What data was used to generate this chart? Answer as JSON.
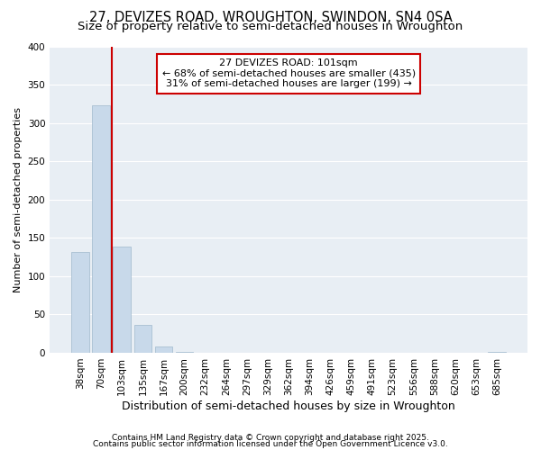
{
  "title1": "27, DEVIZES ROAD, WROUGHTON, SWINDON, SN4 0SA",
  "title2": "Size of property relative to semi-detached houses in Wroughton",
  "xlabel": "Distribution of semi-detached houses by size in Wroughton",
  "ylabel": "Number of semi-detached properties",
  "categories": [
    "38sqm",
    "70sqm",
    "103sqm",
    "135sqm",
    "167sqm",
    "200sqm",
    "232sqm",
    "264sqm",
    "297sqm",
    "329sqm",
    "362sqm",
    "394sqm",
    "426sqm",
    "459sqm",
    "491sqm",
    "523sqm",
    "556sqm",
    "588sqm",
    "620sqm",
    "653sqm",
    "685sqm"
  ],
  "values": [
    131,
    323,
    139,
    36,
    8,
    1,
    0,
    0,
    0,
    0,
    0,
    0,
    0,
    0,
    0,
    0,
    0,
    0,
    0,
    0,
    1
  ],
  "bar_color": "#c8d9ea",
  "bar_edge_color": "#a0b8cc",
  "vline_x": 2.0,
  "vline_color": "#cc0000",
  "annotation_text": "27 DEVIZES ROAD: 101sqm\n← 68% of semi-detached houses are smaller (435)\n31% of semi-detached houses are larger (199) →",
  "box_color": "#cc0000",
  "plot_bg_color": "#e8eef4",
  "fig_bg_color": "#ffffff",
  "grid_color": "#ffffff",
  "ylim": [
    0,
    400
  ],
  "yticks": [
    0,
    50,
    100,
    150,
    200,
    250,
    300,
    350,
    400
  ],
  "footnote1": "Contains HM Land Registry data © Crown copyright and database right 2025.",
  "footnote2": "Contains public sector information licensed under the Open Government Licence v3.0.",
  "title1_fontsize": 10.5,
  "title2_fontsize": 9.5,
  "xlabel_fontsize": 9,
  "ylabel_fontsize": 8,
  "tick_fontsize": 7.5,
  "annot_fontsize": 8,
  "footnote_fontsize": 6.5
}
